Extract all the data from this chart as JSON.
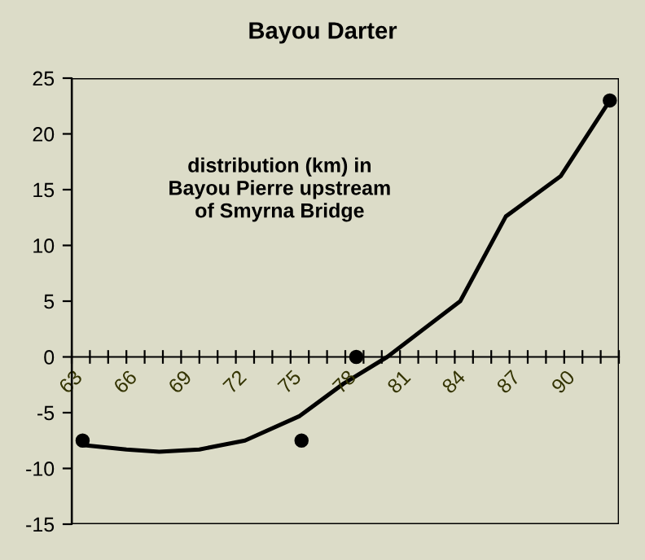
{
  "chart_data": {
    "type": "scatter",
    "title": "Bayou Darter",
    "annotations": [
      "distribution (km) in\nBayou Pierre upstream\nof Smyrna Bridge"
    ],
    "xlim": [
      63,
      93
    ],
    "ylim": [
      -15,
      25
    ],
    "yticks": [
      -15,
      -10,
      -5,
      0,
      5,
      10,
      15,
      20,
      25
    ],
    "xticks": [
      63,
      {
        "value": 64,
        "label": null
      },
      {
        "value": 65,
        "label": null
      },
      66,
      {
        "value": 67,
        "label": null
      },
      {
        "value": 68,
        "label": null
      },
      69,
      {
        "value": 70,
        "label": null
      },
      {
        "value": 71,
        "label": null
      },
      72,
      {
        "value": 73,
        "label": null
      },
      {
        "value": 74,
        "label": null
      },
      75,
      {
        "value": 76,
        "label": null
      },
      {
        "value": 77,
        "label": null
      },
      78,
      {
        "value": 79,
        "label": null
      },
      {
        "value": 80,
        "label": null
      },
      81,
      {
        "value": 82,
        "label": null
      },
      {
        "value": 83,
        "label": null
      },
      84,
      {
        "value": 85,
        "label": null
      },
      {
        "value": 86,
        "label": null
      },
      87,
      {
        "value": 88,
        "label": null
      },
      {
        "value": 89,
        "label": null
      },
      90,
      {
        "value": 91,
        "label": null
      },
      {
        "value": 92,
        "label": null
      },
      {
        "value": 93,
        "label": null
      }
    ],
    "marker": "circle",
    "grid": false,
    "series": [
      {
        "color": "#000000",
        "x": [
          63.6,
          75.6,
          78.6,
          92.5
        ],
        "values": [
          -7.5,
          -7.5,
          0,
          23
        ]
      },
      {
        "type": "line",
        "color": "#000000",
        "marker": "none",
        "x": [
          63.6,
          66,
          67.8,
          70,
          72.5,
          75.5,
          77.9,
          80.3,
          84.3,
          86.8,
          89.8,
          92.5
        ],
        "values": [
          -7.9,
          -8.3,
          -8.5,
          -8.3,
          -7.5,
          -5.3,
          -2.4,
          0,
          5,
          12.6,
          16.2,
          23
        ]
      }
    ]
  }
}
